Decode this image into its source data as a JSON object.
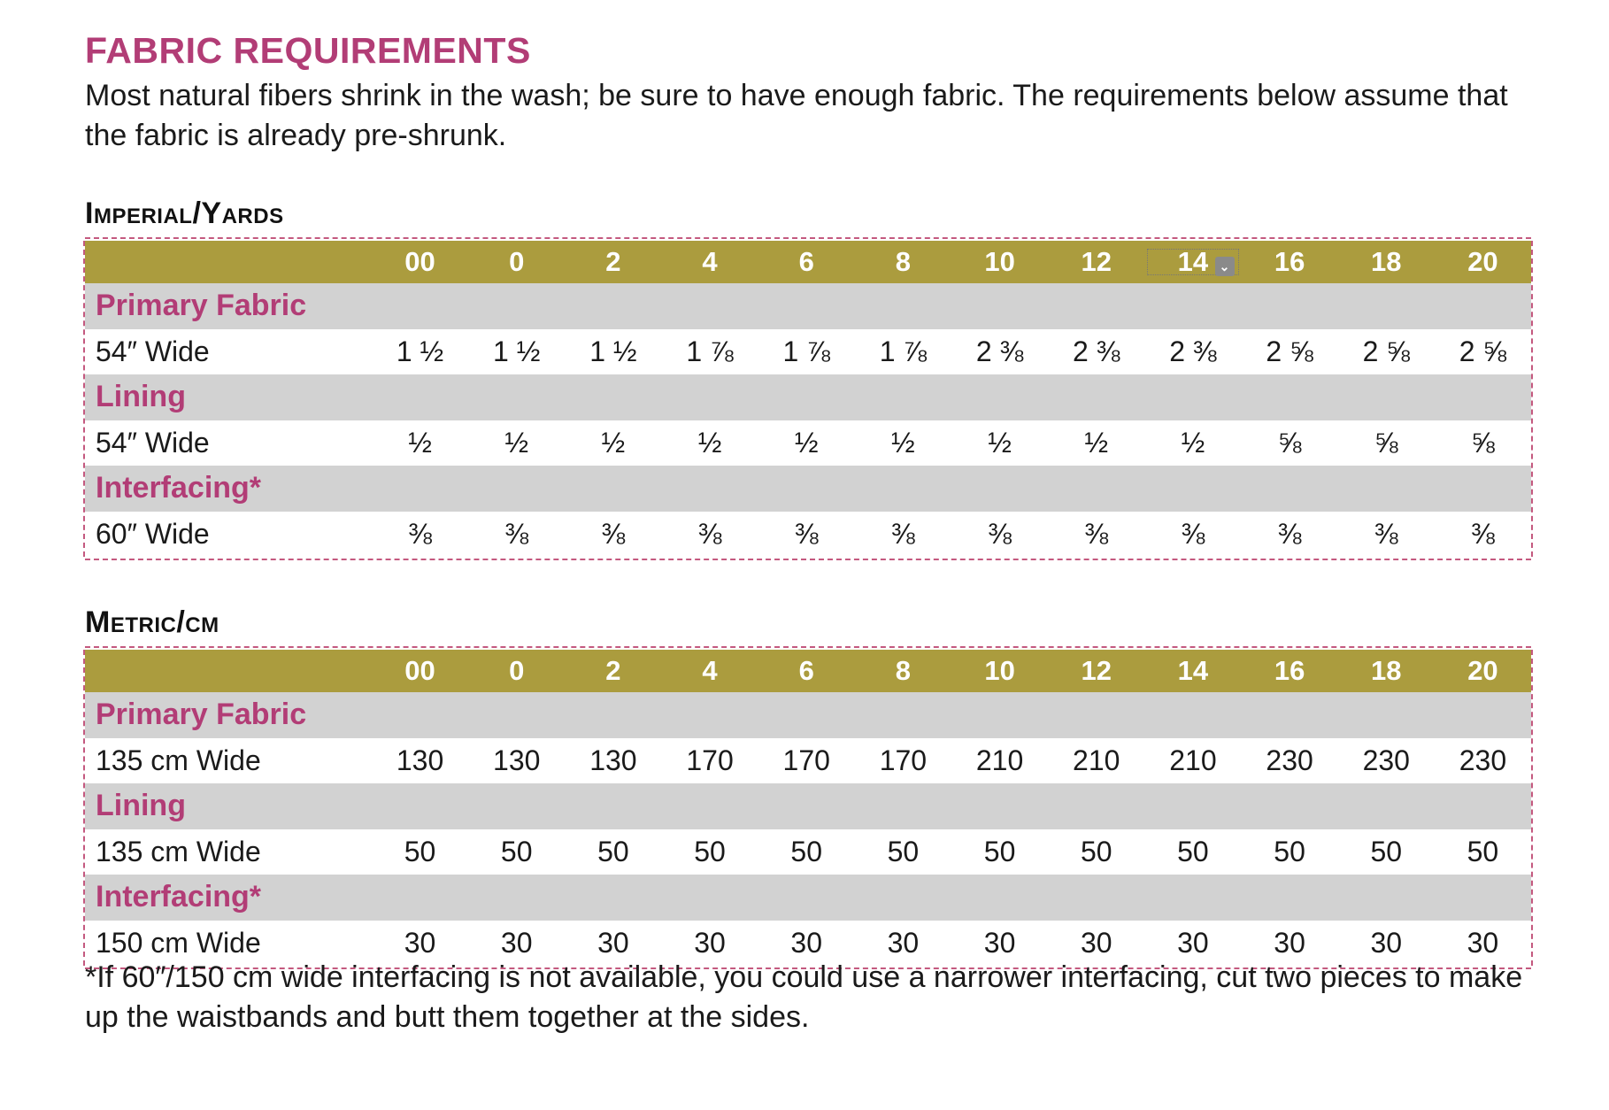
{
  "heading": "FABRIC REQUIREMENTS",
  "intro": "Most natural fibers shrink in the wash; be sure to have enough fabric. The requirements below assume that the fabric is already pre-shrunk.",
  "sizes": [
    "00",
    "0",
    "2",
    "4",
    "6",
    "8",
    "10",
    "12",
    "14",
    "16",
    "18",
    "20"
  ],
  "imperial": {
    "title": "Imperial/Yards",
    "selected_size_index": 8,
    "marker_icon": "chevron-down-icon",
    "rows": [
      {
        "type": "category",
        "label": "Primary Fabric"
      },
      {
        "type": "values",
        "label": "54″ Wide",
        "values": [
          "1 ½",
          "1 ½",
          "1 ½",
          "1 ⅞",
          "1 ⅞",
          "1 ⅞",
          "2 ⅜",
          "2 ⅜",
          "2 ⅜",
          "2 ⅝",
          "2 ⅝",
          "2 ⅝"
        ]
      },
      {
        "type": "category",
        "label": "Lining"
      },
      {
        "type": "values",
        "label": "54″ Wide",
        "values": [
          "½",
          "½",
          "½",
          "½",
          "½",
          "½",
          "½",
          "½",
          "½",
          "⅝",
          "⅝",
          "⅝"
        ]
      },
      {
        "type": "category",
        "label": "Interfacing*"
      },
      {
        "type": "values",
        "label": "60″ Wide",
        "values": [
          "⅜",
          "⅜",
          "⅜",
          "⅜",
          "⅜",
          "⅜",
          "⅜",
          "⅜",
          "⅜",
          "⅜",
          "⅜",
          "⅜"
        ]
      }
    ]
  },
  "metric": {
    "title": "Metric/cm",
    "rows": [
      {
        "type": "category",
        "label": "Primary Fabric"
      },
      {
        "type": "values",
        "label": "135 cm  Wide",
        "values": [
          "130",
          "130",
          "130",
          "170",
          "170",
          "170",
          "210",
          "210",
          "210",
          "230",
          "230",
          "230"
        ]
      },
      {
        "type": "category",
        "label": "Lining"
      },
      {
        "type": "values",
        "label": "135 cm  Wide",
        "values": [
          "50",
          "50",
          "50",
          "50",
          "50",
          "50",
          "50",
          "50",
          "50",
          "50",
          "50",
          "50"
        ]
      },
      {
        "type": "category",
        "label": "Interfacing*"
      },
      {
        "type": "values",
        "label": "150 cm  Wide",
        "values": [
          "30",
          "30",
          "30",
          "30",
          "30",
          "30",
          "30",
          "30",
          "30",
          "30",
          "30",
          "30"
        ]
      }
    ]
  },
  "footnote": "*If 60″/150 cm wide interfacing is not available, you could use a narrower interfacing, cut two pieces to make up the waistbands and butt them together at the sides.",
  "colors": {
    "accent_pink": "#b23d76",
    "header_olive": "#ab9c3e",
    "category_gray": "#d2d2d2",
    "dashed_border": "#c4597f"
  }
}
